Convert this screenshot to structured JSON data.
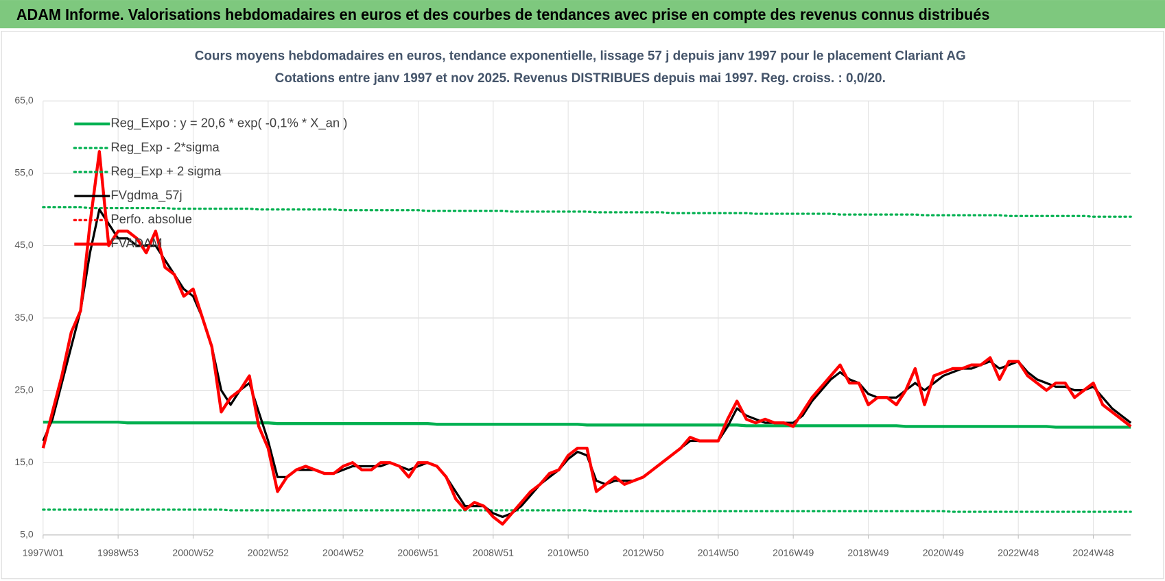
{
  "header": {
    "title": "ADAM Informe. Valorisations hebdomadaires en euros et des courbes de tendances avec prise en compte des revenus connus distribués"
  },
  "chart_data": {
    "type": "line",
    "title": "Cours moyens hebdomadaires en euros, tendance exponentielle, lissage 57 j depuis janv 1997 pour le placement Clariant AG",
    "subtitle": "Cotations entre janv 1997 et nov 2025. Revenus DISTRIBUES depuis mai 1997. Reg. croiss. : 0,0/20.",
    "legend": "upper left",
    "grid": true,
    "ylim": [
      5,
      65
    ],
    "yticks": [
      {
        "value": 5,
        "label": "5,0"
      },
      {
        "value": 15,
        "label": "15,0"
      },
      {
        "value": 25,
        "label": "25,0"
      },
      {
        "value": 35,
        "label": "35,0"
      },
      {
        "value": 45,
        "label": "45,0"
      },
      {
        "value": 55,
        "label": "55,0"
      },
      {
        "value": 65,
        "label": "65,0"
      }
    ],
    "categories": [
      "1997W01",
      null,
      null,
      null,
      null,
      null,
      null,
      null,
      "1998W53",
      null,
      null,
      null,
      null,
      null,
      null,
      null,
      "2000W52",
      null,
      null,
      null,
      null,
      null,
      null,
      null,
      "2002W52",
      null,
      null,
      null,
      null,
      null,
      null,
      null,
      "2004W52",
      null,
      null,
      null,
      null,
      null,
      null,
      null,
      "2006W51",
      null,
      null,
      null,
      null,
      null,
      null,
      null,
      "2008W51",
      null,
      null,
      null,
      null,
      null,
      null,
      null,
      "2010W50",
      null,
      null,
      null,
      null,
      null,
      null,
      null,
      "2012W50",
      null,
      null,
      null,
      null,
      null,
      null,
      null,
      "2014W50",
      null,
      null,
      null,
      null,
      null,
      null,
      null,
      "2016W49",
      null,
      null,
      null,
      null,
      null,
      null,
      null,
      "2018W49",
      null,
      null,
      null,
      null,
      null,
      null,
      null,
      "2020W49",
      null,
      null,
      null,
      null,
      null,
      null,
      null,
      "2022W48",
      null,
      null,
      null,
      null,
      null,
      null,
      null,
      "2024W48",
      null,
      null,
      null,
      null
    ],
    "series": [
      {
        "name": "Reg_Expo : y = 20,6 * exp( -0,1% *  X_an )",
        "color": "#00b050",
        "line_style": "solid",
        "values": [
          20.6,
          20.6,
          20.6,
          20.6,
          20.6,
          20.6,
          20.6,
          20.6,
          20.6,
          20.5,
          20.5,
          20.5,
          20.5,
          20.5,
          20.5,
          20.5,
          20.5,
          20.5,
          20.5,
          20.5,
          20.5,
          20.5,
          20.5,
          20.5,
          20.5,
          20.4,
          20.4,
          20.4,
          20.4,
          20.4,
          20.4,
          20.4,
          20.4,
          20.4,
          20.4,
          20.4,
          20.4,
          20.4,
          20.4,
          20.4,
          20.4,
          20.4,
          20.3,
          20.3,
          20.3,
          20.3,
          20.3,
          20.3,
          20.3,
          20.3,
          20.3,
          20.3,
          20.3,
          20.3,
          20.3,
          20.3,
          20.3,
          20.3,
          20.2,
          20.2,
          20.2,
          20.2,
          20.2,
          20.2,
          20.2,
          20.2,
          20.2,
          20.2,
          20.2,
          20.2,
          20.2,
          20.2,
          20.2,
          20.2,
          20.2,
          20.1,
          20.1,
          20.1,
          20.1,
          20.1,
          20.1,
          20.1,
          20.1,
          20.1,
          20.1,
          20.1,
          20.1,
          20.1,
          20.1,
          20.1,
          20.1,
          20.1,
          20.0,
          20.0,
          20.0,
          20.0,
          20.0,
          20.0,
          20.0,
          20.0,
          20.0,
          20.0,
          20.0,
          20.0,
          20.0,
          20.0,
          20.0,
          20.0,
          19.9,
          19.9,
          19.9,
          19.9,
          19.9,
          19.9,
          19.9,
          19.9,
          19.9
        ]
      },
      {
        "name": "Reg_Exp - 2*sigma",
        "color": "#00b050",
        "line_style": "dotted",
        "values": [
          8.5,
          8.5,
          8.5,
          8.5,
          8.5,
          8.5,
          8.5,
          8.5,
          8.5,
          8.5,
          8.5,
          8.5,
          8.5,
          8.5,
          8.5,
          8.5,
          8.5,
          8.5,
          8.5,
          8.5,
          8.4,
          8.4,
          8.4,
          8.4,
          8.4,
          8.4,
          8.4,
          8.4,
          8.4,
          8.4,
          8.4,
          8.4,
          8.4,
          8.4,
          8.4,
          8.4,
          8.4,
          8.4,
          8.4,
          8.4,
          8.4,
          8.4,
          8.4,
          8.4,
          8.4,
          8.4,
          8.4,
          8.4,
          8.4,
          8.4,
          8.4,
          8.4,
          8.4,
          8.4,
          8.4,
          8.4,
          8.4,
          8.4,
          8.4,
          8.3,
          8.3,
          8.3,
          8.3,
          8.3,
          8.3,
          8.3,
          8.3,
          8.3,
          8.3,
          8.3,
          8.3,
          8.3,
          8.3,
          8.3,
          8.3,
          8.3,
          8.3,
          8.3,
          8.3,
          8.3,
          8.3,
          8.3,
          8.3,
          8.3,
          8.3,
          8.3,
          8.3,
          8.3,
          8.3,
          8.3,
          8.3,
          8.3,
          8.3,
          8.3,
          8.3,
          8.3,
          8.3,
          8.2,
          8.2,
          8.2,
          8.2,
          8.2,
          8.2,
          8.2,
          8.2,
          8.2,
          8.2,
          8.2,
          8.2,
          8.2,
          8.2,
          8.2,
          8.2,
          8.2,
          8.2,
          8.2,
          8.2
        ]
      },
      {
        "name": "Reg_Exp + 2 sigma",
        "color": "#00b050",
        "line_style": "dotted",
        "values": [
          50.3,
          50.3,
          50.3,
          50.3,
          50.3,
          50.2,
          50.2,
          50.2,
          50.2,
          50.2,
          50.2,
          50.2,
          50.2,
          50.2,
          50.1,
          50.1,
          50.1,
          50.1,
          50.1,
          50.1,
          50.1,
          50.1,
          50.1,
          50.0,
          50.0,
          50.0,
          50.0,
          50.0,
          50.0,
          50.0,
          50.0,
          50.0,
          49.9,
          49.9,
          49.9,
          49.9,
          49.9,
          49.9,
          49.9,
          49.9,
          49.9,
          49.8,
          49.8,
          49.8,
          49.8,
          49.8,
          49.8,
          49.8,
          49.8,
          49.8,
          49.7,
          49.7,
          49.7,
          49.7,
          49.7,
          49.7,
          49.7,
          49.7,
          49.7,
          49.6,
          49.6,
          49.6,
          49.6,
          49.6,
          49.6,
          49.6,
          49.6,
          49.5,
          49.5,
          49.5,
          49.5,
          49.5,
          49.5,
          49.5,
          49.5,
          49.5,
          49.4,
          49.4,
          49.4,
          49.4,
          49.4,
          49.4,
          49.4,
          49.4,
          49.4,
          49.3,
          49.3,
          49.3,
          49.3,
          49.3,
          49.3,
          49.3,
          49.3,
          49.3,
          49.2,
          49.2,
          49.2,
          49.2,
          49.2,
          49.2,
          49.2,
          49.2,
          49.2,
          49.1,
          49.1,
          49.1,
          49.1,
          49.1,
          49.1,
          49.1,
          49.1,
          49.1,
          49.0,
          49.0,
          49.0,
          49.0,
          49.0
        ]
      },
      {
        "name": "FVgdma_57j",
        "color": "#000000",
        "line_style": "solid",
        "values": [
          18,
          21,
          26,
          31,
          36,
          44,
          50,
          48,
          46,
          46,
          45,
          45,
          45,
          43,
          41,
          39,
          38,
          35,
          31,
          25,
          23,
          25,
          26,
          22,
          18,
          13,
          13,
          14,
          14,
          14,
          13.5,
          13.5,
          14,
          14.5,
          14.5,
          14.5,
          14.5,
          15,
          14.5,
          14,
          14.5,
          15,
          14.5,
          13,
          11,
          9,
          9,
          9,
          8,
          7.5,
          8,
          9,
          10.5,
          12,
          13,
          14,
          15.5,
          16.5,
          16,
          12.5,
          12,
          12.5,
          12.5,
          12.5,
          13,
          14,
          15,
          16,
          17,
          18,
          18,
          18,
          18,
          20,
          22.5,
          21.5,
          21,
          20.5,
          20.5,
          20.5,
          20.5,
          21.5,
          23.5,
          25,
          26.5,
          27.5,
          26.5,
          26,
          24.5,
          24,
          24,
          24,
          25,
          26,
          25,
          26,
          27,
          27.5,
          28,
          28,
          28.5,
          29,
          28,
          28.5,
          29,
          27.5,
          26.5,
          26,
          25.5,
          25.5,
          25,
          25,
          25.5,
          24,
          22.5,
          21.5,
          20.5
        ]
      },
      {
        "name": "Perfo. absolue",
        "color": "#ff0000",
        "line_style": "dotted",
        "values": [
          null,
          null,
          null,
          null,
          null,
          null,
          null,
          null,
          null,
          null,
          null,
          null,
          null,
          null,
          null,
          null,
          null,
          null,
          null,
          null,
          null,
          null,
          null,
          null,
          null,
          null,
          null,
          null,
          null,
          null,
          null,
          null,
          null,
          null,
          null,
          null,
          null,
          null,
          null,
          null,
          null,
          null,
          null,
          null,
          null,
          null,
          null,
          null,
          null,
          null,
          null,
          null,
          null,
          null,
          null,
          null,
          null,
          null,
          null,
          null,
          null,
          null,
          null,
          null,
          null,
          null,
          null,
          null,
          null,
          null,
          null,
          null,
          null,
          null,
          null,
          null,
          null,
          null,
          null,
          null,
          null,
          null,
          null,
          null,
          null,
          null,
          null,
          null,
          null,
          null,
          null,
          null,
          null,
          null,
          null,
          null,
          null,
          null,
          null,
          null,
          null,
          null,
          null,
          null,
          null,
          null,
          null,
          null,
          null,
          null,
          null,
          null,
          null,
          null,
          null,
          null,
          null
        ]
      },
      {
        "name": "FVADAM",
        "color": "#ff0000",
        "line_style": "solid",
        "values": [
          17,
          22,
          27,
          33,
          36,
          48,
          58,
          45,
          47,
          47,
          46,
          44,
          47,
          42,
          41,
          38,
          39,
          35,
          31,
          22,
          24,
          25,
          27,
          20,
          17,
          11,
          13,
          14,
          14.5,
          14,
          13.5,
          13.5,
          14.5,
          15,
          14,
          14,
          15,
          15,
          14.5,
          13,
          15,
          15,
          14.5,
          13,
          10,
          8.5,
          9.5,
          9,
          7.5,
          6.5,
          8,
          9.5,
          11,
          12,
          13.5,
          14,
          16,
          17,
          17,
          11,
          12,
          13,
          12,
          12.5,
          13,
          14,
          15,
          16,
          17,
          18.5,
          18,
          18,
          18,
          21,
          23.5,
          21,
          20.5,
          21,
          20.5,
          20.5,
          20,
          22,
          24,
          25.5,
          27,
          28.5,
          26,
          26,
          23,
          24,
          24,
          23,
          25,
          28,
          23,
          27,
          27.5,
          28,
          28,
          28.5,
          28.5,
          29.5,
          26.5,
          29,
          29,
          27,
          26,
          25,
          26,
          26,
          24,
          25,
          26,
          23,
          22,
          21,
          20
        ]
      }
    ]
  }
}
